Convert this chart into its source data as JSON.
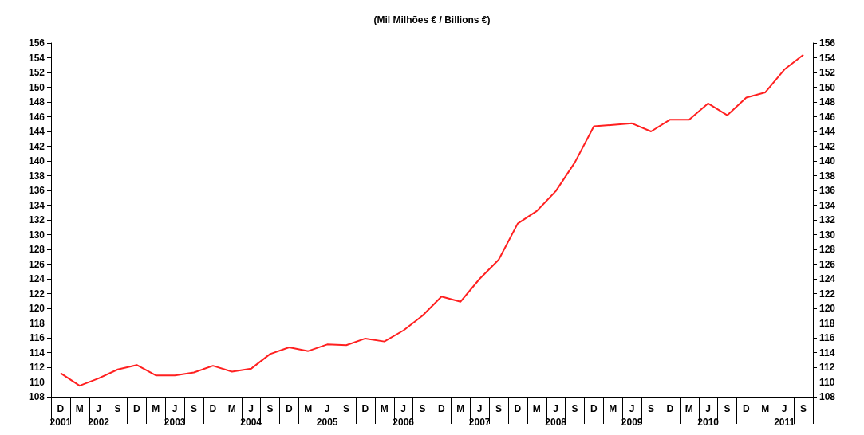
{
  "chart_data": {
    "type": "line",
    "title": "(Mil Milhões € / Billions €)",
    "categories": [
      "D\n2001",
      "M",
      "J\n2002",
      "S",
      "D",
      "M",
      "J\n2003",
      "S",
      "D",
      "M",
      "J\n2004",
      "S",
      "D",
      "M",
      "J\n2005",
      "S",
      "D",
      "M",
      "J\n2006",
      "S",
      "D",
      "M",
      "J\n2007",
      "S",
      "D",
      "M",
      "J\n2008",
      "S",
      "D",
      "M",
      "J\n2009",
      "S",
      "D",
      "M",
      "J\n2010",
      "S",
      "D",
      "M",
      "J\n2011",
      "S"
    ],
    "series": [
      {
        "color": "#ff2020",
        "values": [
          111.2,
          109.5,
          110.5,
          111.7,
          112.3,
          110.9,
          110.9,
          111.3,
          112.2,
          111.4,
          111.8,
          113.8,
          114.7,
          114.2,
          115.1,
          115.0,
          115.9,
          115.5,
          117.0,
          119.0,
          121.6,
          120.9,
          124.0,
          126.6,
          131.5,
          133.2,
          135.9,
          139.8,
          144.7,
          144.9,
          145.1,
          144.0,
          145.6,
          145.6,
          147.8,
          146.2,
          148.6,
          149.3,
          152.4,
          154.4
        ]
      }
    ],
    "ylim": [
      108,
      156
    ],
    "yticks": [
      108,
      110,
      112,
      114,
      116,
      118,
      120,
      122,
      124,
      126,
      128,
      130,
      132,
      134,
      136,
      138,
      140,
      142,
      144,
      146,
      148,
      150,
      152,
      154,
      156
    ],
    "y2lim": [
      108,
      156
    ],
    "y2ticks": [
      108,
      110,
      112,
      114,
      116,
      118,
      120,
      122,
      124,
      126,
      128,
      130,
      132,
      134,
      136,
      138,
      140,
      142,
      144,
      146,
      148,
      150,
      152,
      154,
      156
    ],
    "grid": false,
    "marker": "none",
    "line_style": "solid"
  }
}
